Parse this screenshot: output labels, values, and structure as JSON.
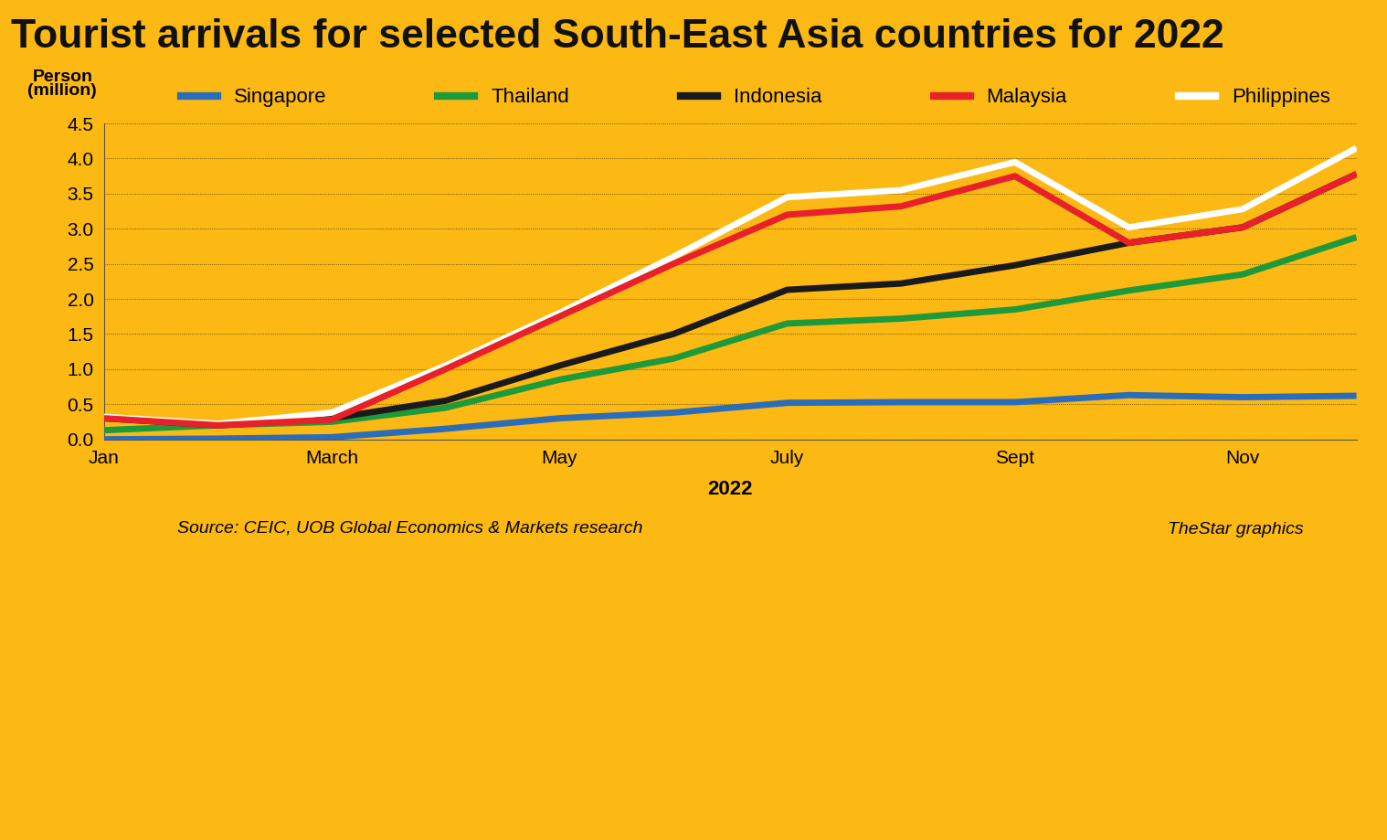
{
  "chart_data": {
    "type": "line",
    "title": "Tourist arrivals for selected South-East Asia countries for 2022",
    "y_label": "Person\n(million)",
    "x_label": "2022",
    "source": "Source: CEIC, UOB Global Economics & Markets research",
    "credit": "TheStar graphics",
    "categories": [
      "Jan",
      null,
      "March",
      null,
      "May",
      null,
      "July",
      null,
      "Sept",
      null,
      "Nov",
      null
    ],
    "series": [
      {
        "name": "Singapore",
        "color": "#2a6ebb",
        "values": [
          0.0,
          0.01,
          0.03,
          0.15,
          0.3,
          0.38,
          0.52,
          0.53,
          0.53,
          0.63,
          0.6,
          0.62
        ]
      },
      {
        "name": "Thailand",
        "color": "#1e9a3a",
        "values": [
          0.13,
          0.2,
          0.25,
          0.45,
          0.85,
          1.15,
          1.65,
          1.72,
          1.85,
          2.12,
          2.35,
          2.88
        ]
      },
      {
        "name": "Indonesia",
        "color": "#1a1a1a",
        "values": [
          0.3,
          0.2,
          0.3,
          0.55,
          1.05,
          1.5,
          2.13,
          2.22,
          2.48,
          2.8,
          3.02,
          3.78
        ]
      },
      {
        "name": "Malaysia",
        "color": "#e8202a",
        "values": [
          0.3,
          0.2,
          0.28,
          1.0,
          1.75,
          2.5,
          3.2,
          3.32,
          3.75,
          2.8,
          3.02,
          3.78
        ]
      },
      {
        "name": "Philippines",
        "color": "#ffffff",
        "values": [
          0.32,
          0.22,
          0.38,
          1.05,
          1.8,
          2.6,
          3.45,
          3.55,
          3.95,
          3.02,
          3.28,
          4.15
        ]
      }
    ],
    "ylim": [
      0,
      4.5
    ],
    "yticks": [
      {
        "value": 0,
        "label": "0.0"
      },
      0.5,
      {
        "value": 1,
        "label": "1.0"
      },
      1.5,
      {
        "value": 2,
        "label": "2.0"
      },
      2.5,
      {
        "value": 3,
        "label": "3.0"
      },
      3.5,
      {
        "value": 4,
        "label": "4.0"
      },
      4.5
    ],
    "grid": true,
    "legend": "upper center"
  }
}
